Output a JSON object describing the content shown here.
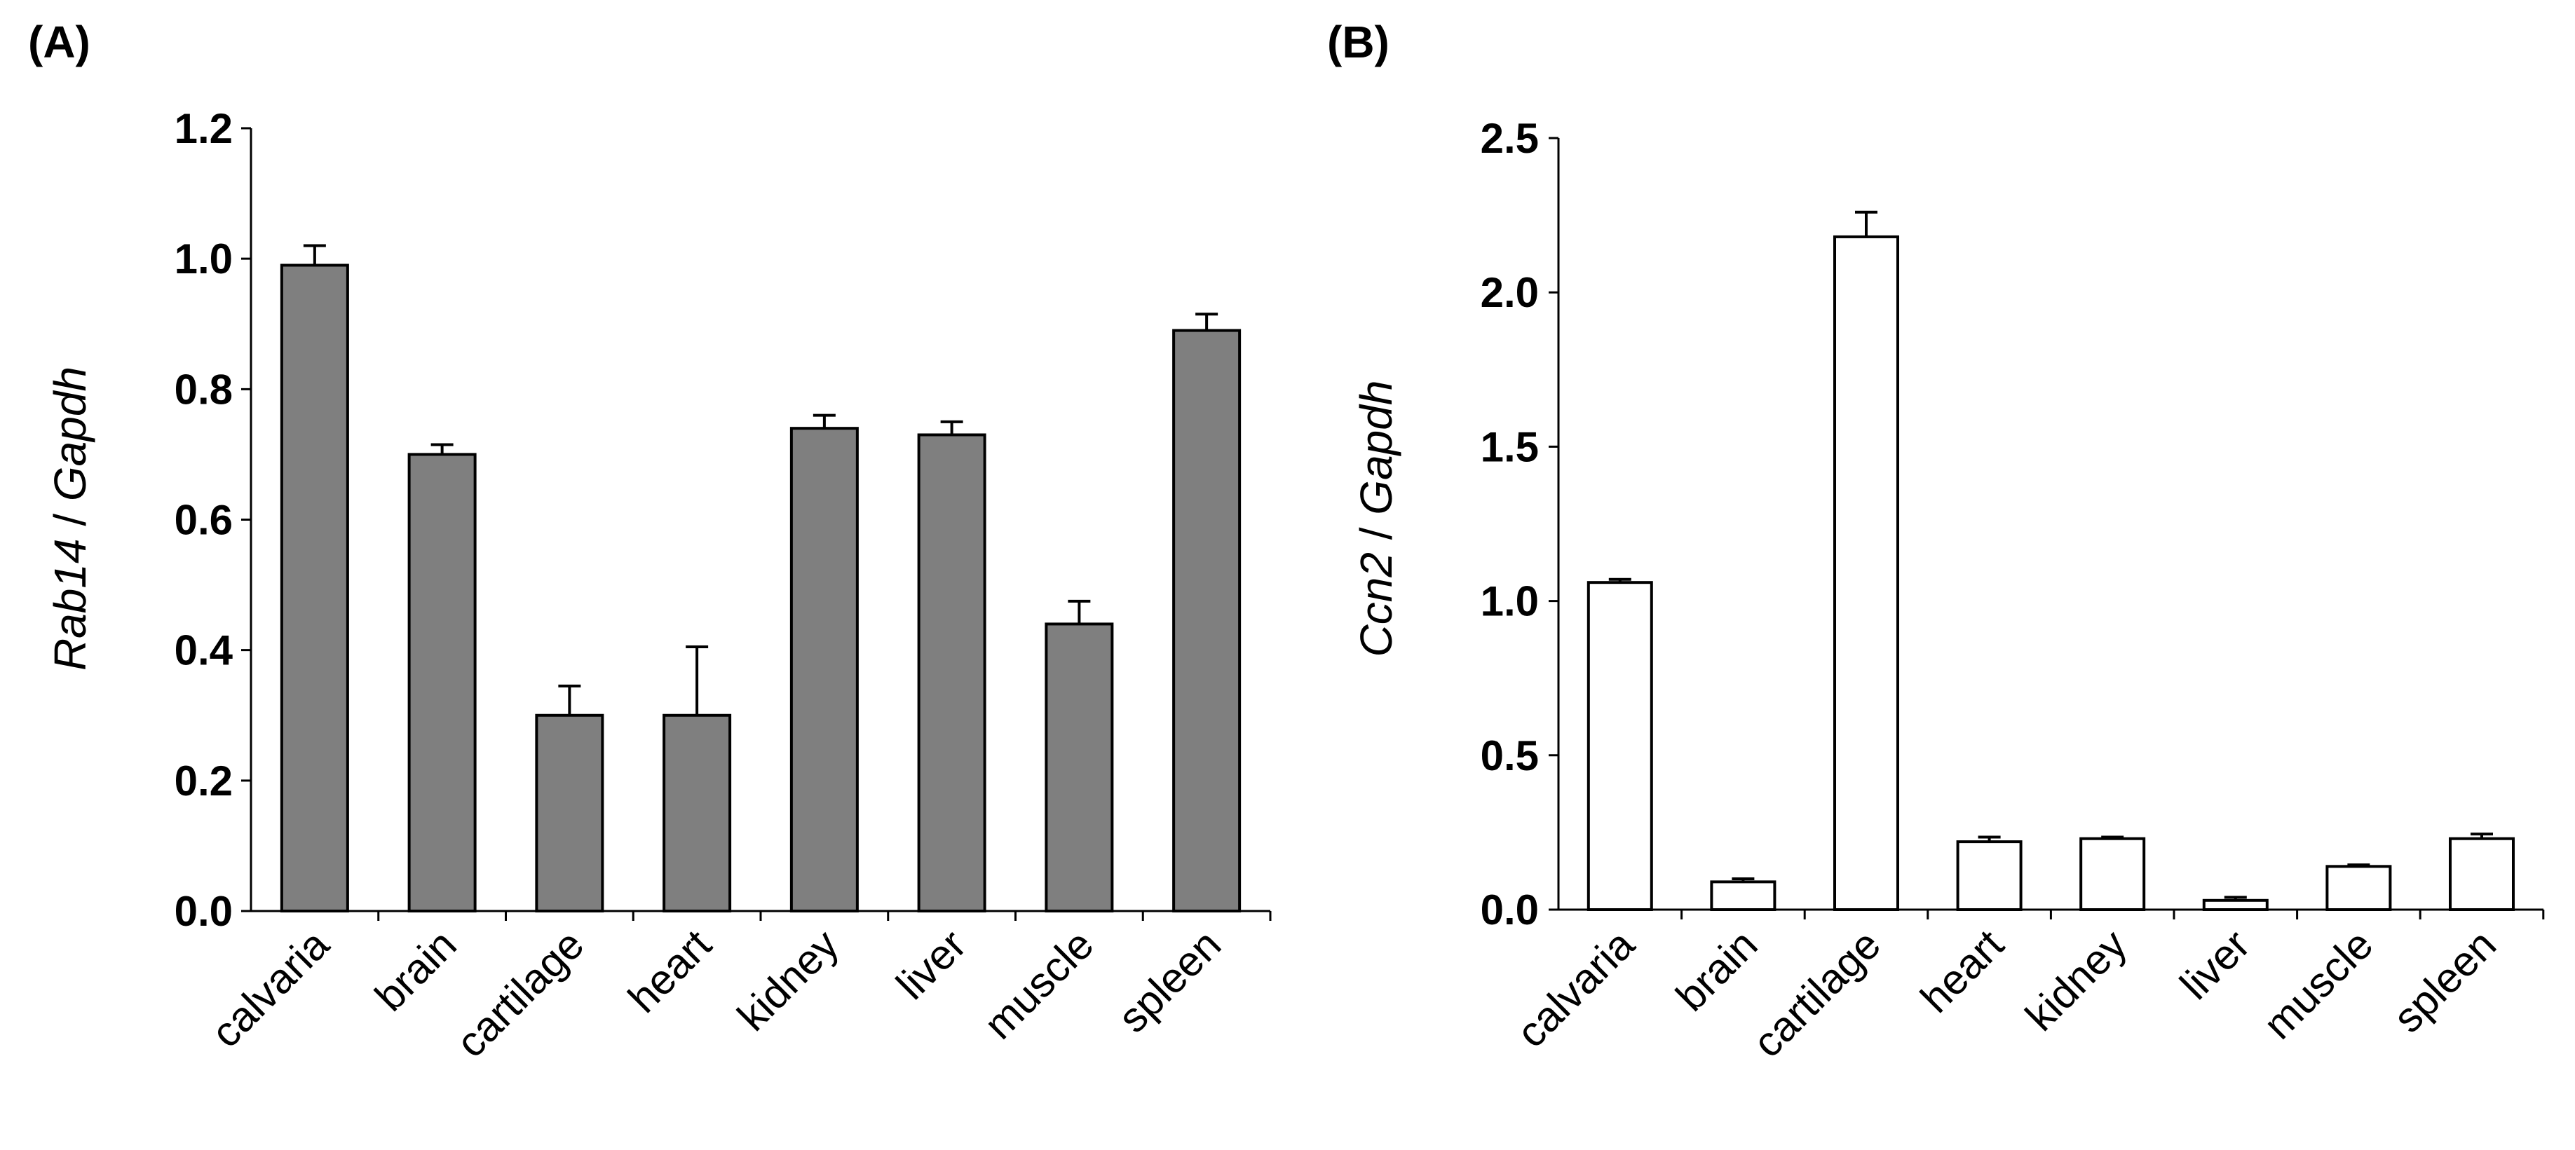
{
  "chart_data": [
    {
      "type": "bar",
      "panel_label": "(A)",
      "ylabel_gene": "Rab14",
      "ylabel_sep": " / ",
      "ylabel_ref": "Gapdh",
      "categories": [
        "calvaria",
        "brain",
        "cartilage",
        "heart",
        "kidney",
        "liver",
        "muscle",
        "spleen"
      ],
      "values": [
        0.99,
        0.7,
        0.3,
        0.3,
        0.74,
        0.73,
        0.44,
        0.89
      ],
      "errors": [
        0.03,
        0.015,
        0.045,
        0.105,
        0.02,
        0.02,
        0.035,
        0.025
      ],
      "ylim": [
        0,
        1.2
      ],
      "yticks": [
        "0.0",
        "0.2",
        "0.4",
        "0.6",
        "0.8",
        "1.0",
        "1.2"
      ],
      "bar_color": "#7f7f7f"
    },
    {
      "type": "bar",
      "panel_label": "(B)",
      "ylabel_gene": "Ccn2",
      "ylabel_sep": " / ",
      "ylabel_ref": "Gapdh",
      "categories": [
        "calvaria",
        "brain",
        "cartilage",
        "heart",
        "kidney",
        "liver",
        "muscle",
        "spleen"
      ],
      "values": [
        1.06,
        0.09,
        2.18,
        0.22,
        0.23,
        0.03,
        0.14,
        0.23
      ],
      "errors": [
        0.01,
        0.01,
        0.08,
        0.015,
        0.005,
        0.01,
        0.005,
        0.015
      ],
      "ylim": [
        0,
        2.5
      ],
      "yticks": [
        "0.0",
        "0.5",
        "1.0",
        "1.5",
        "2.0",
        "2.5"
      ],
      "bar_color": "#ffffff"
    }
  ]
}
